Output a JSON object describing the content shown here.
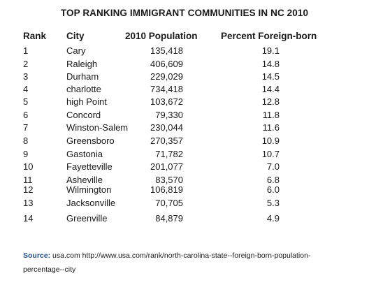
{
  "title": "TOP RANKING IMMIGRANT COMMUNITIES IN NC 2010",
  "headers": {
    "rank": "Rank",
    "city": "City",
    "population": "2010 Population",
    "percent": "Percent Foreign-born"
  },
  "rows": [
    {
      "rank": "1",
      "city": "Cary",
      "population": "135,418",
      "percent": "19.1"
    },
    {
      "rank": "2",
      "city": "Raleigh",
      "population": "406,609",
      "percent": "14.8"
    },
    {
      "rank": "3",
      "city": "Durham",
      "population": "229,029",
      "percent": "14.5"
    },
    {
      "rank": "4",
      "city": "charlotte",
      "population": "734,418",
      "percent": "14.4"
    },
    {
      "rank": "5",
      "city": "high Point",
      "population": "103,672",
      "percent": "12.8"
    },
    {
      "rank": "6",
      "city": "Concord",
      "population": "79,330",
      "percent": "11.8"
    },
    {
      "rank": "7",
      "city": "Winston-Salem",
      "population": "230,044",
      "percent": "11.6"
    },
    {
      "rank": "8",
      "city": "Greensboro",
      "population": "270,357",
      "percent": "10.9"
    },
    {
      "rank": "9",
      "city": "Gastonia",
      "population": "71,782",
      "percent": "10.7"
    },
    {
      "rank": "10",
      "city": "Fayetteville",
      "population": "201,077",
      "percent": "7.0"
    },
    {
      "rank": "11",
      "city": "Asheville",
      "population": "83,570",
      "percent": "6.8"
    },
    {
      "rank": "12",
      "city": "Wilmington",
      "population": "106,819",
      "percent": "6.0"
    },
    {
      "rank": "13",
      "city": "Jacksonville",
      "population": "70,705",
      "percent": "5.3"
    },
    {
      "rank": "14",
      "city": "Greenville",
      "population": "84,879",
      "percent": "4.9"
    }
  ],
  "source": {
    "label": "Source:",
    "text": "usa.com http://www.usa.com/rank/north-carolina-state--foreign-born-population-percentage--city"
  }
}
